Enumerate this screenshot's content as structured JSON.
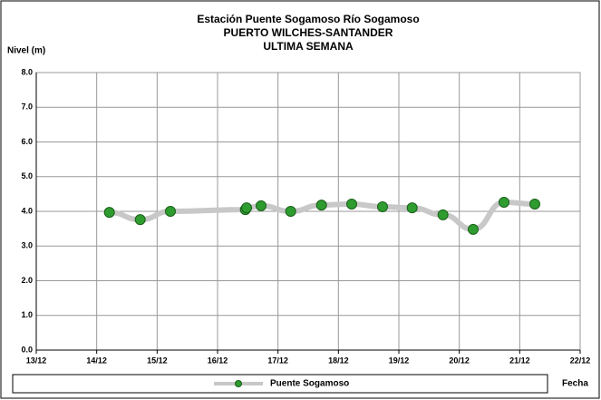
{
  "chart_data": {
    "type": "line",
    "title": [
      "Estación Puente Sogamoso Río Sogamoso",
      "PUERTO WILCHES-SANTANDER",
      "ULTIMA SEMANA"
    ],
    "y_label": "Nivel (m)",
    "x_label": "Fecha",
    "x": [
      14.21,
      14.72,
      15.22,
      16.46,
      16.48,
      16.72,
      17.21,
      17.72,
      18.22,
      18.73,
      19.22,
      19.73,
      20.23,
      20.74,
      21.25
    ],
    "series": [
      {
        "name": "Puente Sogamoso",
        "color": "#2e9c2e",
        "line_color": "#c8c8c8",
        "values": [
          3.97,
          3.76,
          4.0,
          4.05,
          4.1,
          4.16,
          4.0,
          4.18,
          4.21,
          4.13,
          4.1,
          3.9,
          3.48,
          4.26,
          4.21
        ]
      }
    ],
    "xlim": [
      13,
      22
    ],
    "xticks": [
      {
        "value": 13,
        "label": "13/12"
      },
      {
        "value": 14,
        "label": "14/12"
      },
      {
        "value": 15,
        "label": "15/12"
      },
      {
        "value": 16,
        "label": "16/12"
      },
      {
        "value": 17,
        "label": "17/12"
      },
      {
        "value": 18,
        "label": "18/12"
      },
      {
        "value": 19,
        "label": "19/12"
      },
      {
        "value": 20,
        "label": "20/12"
      },
      {
        "value": 21,
        "label": "21/12"
      },
      {
        "value": 22,
        "label": "22/12"
      }
    ],
    "ylim": [
      0,
      8
    ],
    "yticks": [
      {
        "value": 0,
        "label": "0.0"
      },
      {
        "value": 1,
        "label": "1.0"
      },
      {
        "value": 2,
        "label": "2.0"
      },
      {
        "value": 3,
        "label": "3.0"
      },
      {
        "value": 4,
        "label": "4.0"
      },
      {
        "value": 5,
        "label": "5.0"
      },
      {
        "value": 6,
        "label": "6.0"
      },
      {
        "value": 7,
        "label": "7.0"
      },
      {
        "value": 8,
        "label": "8.0"
      }
    ],
    "grid": true
  }
}
